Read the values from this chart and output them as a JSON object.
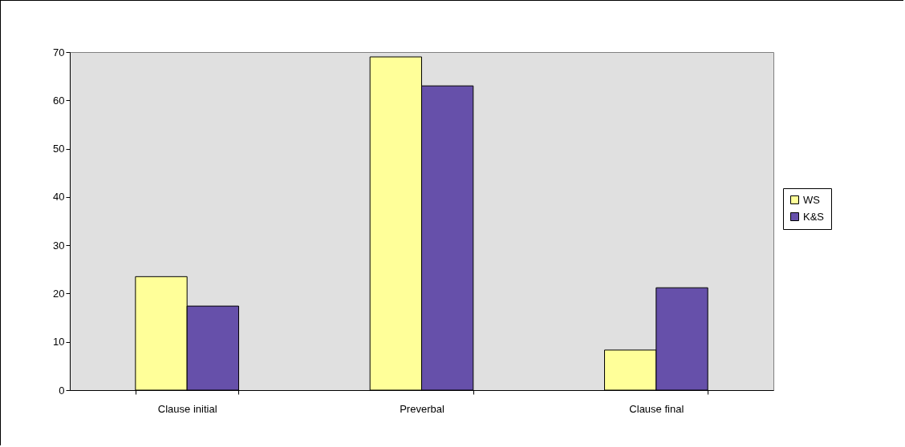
{
  "chart_data": {
    "type": "bar",
    "categories": [
      "Clause initial",
      "Preverbal",
      "Clause final"
    ],
    "series": [
      {
        "name": "WS",
        "color": "#ffff99",
        "values": [
          23.5,
          69,
          8.3
        ]
      },
      {
        "name": "K&S",
        "color": "#6650aa",
        "values": [
          17.4,
          63,
          21.2
        ]
      }
    ],
    "ylim": [
      0,
      70
    ],
    "yticks": [
      0,
      10,
      20,
      30,
      40,
      50,
      60,
      70
    ],
    "legend": "right"
  }
}
